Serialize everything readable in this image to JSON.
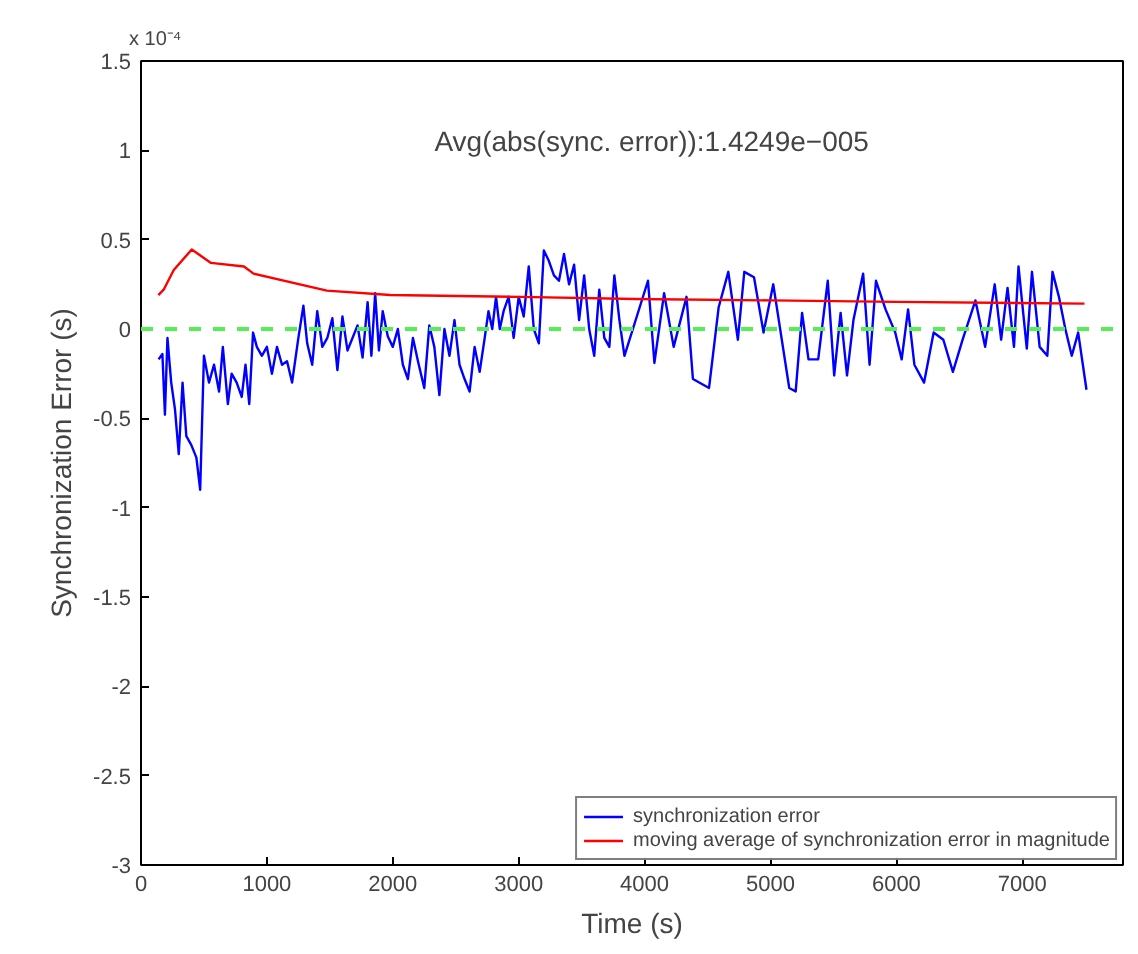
{
  "chart_data": {
    "type": "line",
    "xlabel": "Time (s)",
    "ylabel": "Synchronization Error (s)",
    "annotations": [
      "x 10⁻⁴",
      "Avg(abs(sync. error)):1.4249e−005"
    ],
    "xlim": [
      0,
      7800
    ],
    "xticks": [
      0,
      1000,
      2000,
      3000,
      4000,
      5000,
      6000,
      7000
    ],
    "ylim": [
      -3,
      1.5
    ],
    "yticks": [
      -3,
      -2.5,
      -2,
      -1.5,
      -1,
      -0.5,
      0,
      0.5,
      1,
      1.5
    ],
    "grid": false,
    "legend": "bottom right",
    "line_style": "solid",
    "ref_lines": [
      {
        "axis": "y",
        "value": 0,
        "color": "#55ee55",
        "line_style": "dashed"
      }
    ],
    "series": [
      {
        "name": "synchronization error",
        "color": "#0000ff",
        "x": [
          140,
          170,
          190,
          210,
          240,
          270,
          300,
          330,
          360,
          400,
          440,
          470,
          500,
          540,
          580,
          620,
          650,
          690,
          720,
          760,
          800,
          830,
          860,
          890,
          920,
          960,
          1000,
          1040,
          1080,
          1120,
          1160,
          1200,
          1250,
          1290,
          1320,
          1360,
          1400,
          1440,
          1480,
          1520,
          1560,
          1600,
          1640,
          1680,
          1720,
          1760,
          1800,
          1830,
          1860,
          1890,
          1920,
          1960,
          2000,
          2040,
          2080,
          2120,
          2160,
          2200,
          2250,
          2290,
          2330,
          2370,
          2410,
          2450,
          2490,
          2530,
          2570,
          2610,
          2650,
          2690,
          2730,
          2760,
          2790,
          2820,
          2850,
          2880,
          2920,
          2960,
          3000,
          3040,
          3080,
          3120,
          3160,
          3200,
          3240,
          3280,
          3320,
          3360,
          3400,
          3440,
          3480,
          3520,
          3560,
          3600,
          3640,
          3680,
          3720,
          3760,
          3800,
          3840,
          4027,
          4078,
          4155,
          4231,
          4333,
          4384,
          4512,
          4588,
          4665,
          4741,
          4792,
          4869,
          4945,
          5022,
          5149,
          5200,
          5251,
          5302,
          5379,
          5455,
          5506,
          5557,
          5608,
          5659,
          5736,
          5787,
          5838,
          5914,
          5991,
          6042,
          6093,
          6143,
          6220,
          6296,
          6373,
          6449,
          6526,
          6628,
          6705,
          6781,
          6832,
          6883,
          6934,
          6970,
          7036,
          7077,
          7138,
          7199,
          7240,
          7291,
          7342,
          7393,
          7444,
          7510
        ],
        "values": [
          -0.17,
          -0.14,
          -0.48,
          -0.05,
          -0.3,
          -0.45,
          -0.7,
          -0.3,
          -0.6,
          -0.65,
          -0.72,
          -0.9,
          -0.15,
          -0.3,
          -0.2,
          -0.35,
          -0.1,
          -0.42,
          -0.25,
          -0.3,
          -0.38,
          -0.2,
          -0.42,
          -0.02,
          -0.1,
          -0.15,
          -0.1,
          -0.25,
          -0.1,
          -0.2,
          -0.18,
          -0.3,
          -0.05,
          0.13,
          -0.08,
          -0.2,
          0.1,
          -0.1,
          -0.05,
          0.06,
          -0.23,
          0.07,
          -0.12,
          -0.05,
          0.02,
          -0.16,
          0.15,
          -0.15,
          0.2,
          -0.12,
          0.1,
          -0.04,
          -0.1,
          0.0,
          -0.2,
          -0.28,
          -0.05,
          -0.18,
          -0.33,
          0.02,
          -0.1,
          -0.37,
          0.0,
          -0.15,
          0.05,
          -0.2,
          -0.28,
          -0.35,
          -0.1,
          -0.24,
          -0.05,
          0.1,
          0.0,
          0.18,
          0.0,
          0.1,
          0.18,
          -0.05,
          0.18,
          0.07,
          0.35,
          0.0,
          -0.08,
          0.44,
          0.38,
          0.3,
          0.27,
          0.42,
          0.25,
          0.36,
          0.05,
          0.3,
          0.0,
          -0.15,
          0.22,
          -0.05,
          -0.1,
          0.3,
          0.05,
          -0.15,
          0.27,
          -0.19,
          0.2,
          -0.1,
          0.18,
          -0.28,
          -0.33,
          0.12,
          0.32,
          -0.06,
          0.32,
          0.29,
          -0.02,
          0.25,
          -0.33,
          -0.35,
          0.09,
          -0.17,
          -0.17,
          0.27,
          -0.26,
          0.09,
          -0.26,
          0.05,
          0.31,
          -0.2,
          0.27,
          0.11,
          -0.02,
          -0.17,
          0.11,
          -0.2,
          -0.3,
          -0.02,
          -0.06,
          -0.24,
          -0.06,
          0.16,
          -0.1,
          0.25,
          -0.06,
          0.23,
          -0.1,
          0.35,
          -0.11,
          0.32,
          -0.1,
          -0.15,
          0.32,
          0.18,
          0.0,
          -0.15,
          -0.02,
          -0.34
        ]
      },
      {
        "name": "moving average of synchronization error in magnitude",
        "color": "#ff0000",
        "x": [
          138,
          180,
          260,
          403,
          556,
          818,
          894,
          1476,
          1980,
          3005,
          3929,
          5000,
          6000,
          7494
        ],
        "values": [
          0.19,
          0.22,
          0.33,
          0.445,
          0.37,
          0.35,
          0.31,
          0.215,
          0.19,
          0.18,
          0.168,
          0.16,
          0.152,
          0.142
        ]
      }
    ]
  }
}
